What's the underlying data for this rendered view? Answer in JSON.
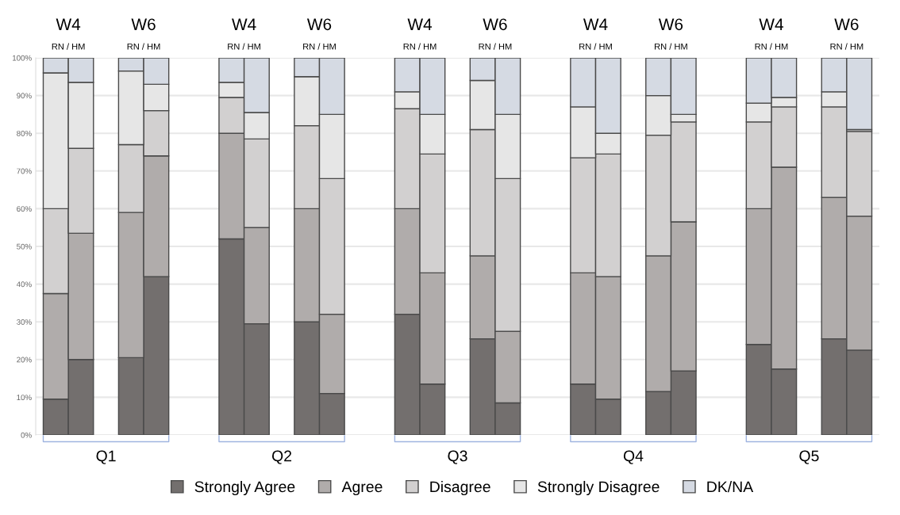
{
  "chart_data": {
    "type": "bar",
    "stacked": true,
    "categories": [
      null,
      null,
      null,
      null,
      null,
      null,
      null,
      null,
      null,
      null,
      null,
      null,
      null,
      null,
      null,
      null,
      null,
      null,
      null,
      null,
      null,
      null,
      null,
      null,
      null,
      null,
      null,
      null,
      null,
      null,
      null,
      null,
      null
    ],
    "series": [
      {
        "name": "Strongly Agree",
        "color": "#736f6e",
        "values": [
          9.5,
          20,
          null,
          20.5,
          42,
          null,
          null,
          52,
          29.5,
          null,
          30,
          11,
          null,
          null,
          32,
          13.5,
          null,
          25.5,
          8.5,
          null,
          null,
          13.5,
          9.5,
          null,
          11.5,
          17,
          null,
          null,
          24,
          17.5,
          null,
          25.5,
          22.5
        ]
      },
      {
        "name": "Agree",
        "color": "#b0acab",
        "values": [
          28,
          33.5,
          null,
          38.5,
          32,
          null,
          null,
          28,
          25.5,
          null,
          30,
          21,
          null,
          null,
          28,
          29.5,
          null,
          22,
          19,
          null,
          null,
          29.5,
          32.5,
          null,
          36,
          39.5,
          null,
          null,
          36,
          53.5,
          null,
          37.5,
          35.5
        ]
      },
      {
        "name": "Disagree",
        "color": "#d2d0d0",
        "values": [
          22.5,
          22.5,
          null,
          18,
          12,
          null,
          null,
          9.5,
          23.5,
          null,
          22,
          36,
          null,
          null,
          26.5,
          31.5,
          null,
          33.5,
          40.5,
          null,
          null,
          30.5,
          32.5,
          null,
          32,
          26.5,
          null,
          null,
          23,
          16,
          null,
          24,
          22.5
        ]
      },
      {
        "name": "Strongly Disagree",
        "color": "#e6e6e6",
        "values": [
          36,
          17.5,
          null,
          19.5,
          7,
          null,
          null,
          4,
          7,
          null,
          13,
          17,
          null,
          null,
          4.5,
          10.5,
          null,
          13,
          17,
          null,
          null,
          13.5,
          5.5,
          null,
          10.5,
          2,
          null,
          null,
          5,
          2.5,
          null,
          4,
          0.5
        ]
      },
      {
        "name": "DK/NA",
        "color": "#d5dae3",
        "values": [
          4,
          6.5,
          null,
          3.5,
          7,
          null,
          null,
          6.5,
          14.5,
          null,
          5,
          15,
          null,
          null,
          9,
          15,
          null,
          6,
          15,
          null,
          null,
          13,
          20,
          null,
          10,
          15,
          null,
          null,
          12,
          10.5,
          null,
          9,
          19
        ]
      }
    ],
    "ylim": [
      0,
      100
    ],
    "yticks": [
      {
        "value": 0,
        "label": "0%"
      },
      {
        "value": 10,
        "label": "10%"
      },
      {
        "value": 20,
        "label": "20%"
      },
      {
        "value": 30,
        "label": "30%"
      },
      {
        "value": 40,
        "label": "40%"
      },
      {
        "value": 50,
        "label": "50%"
      },
      {
        "value": 60,
        "label": "60%"
      },
      {
        "value": 70,
        "label": "70%"
      },
      {
        "value": 80,
        "label": "80%"
      },
      {
        "value": 90,
        "label": "90%"
      },
      {
        "value": 100,
        "label": "100%"
      }
    ],
    "grid": "y",
    "legend": "bottom",
    "annotations": [
      "Q1",
      "W4",
      "RN / HM",
      "W6",
      "RN / HM",
      "Q2",
      "W4",
      "RN / HM",
      "W6",
      "RN / HM",
      "Q3",
      "W4",
      "RN / HM",
      "W6",
      "RN / HM",
      "Q4",
      "W4",
      "RN / HM",
      "W6",
      "RN / HM",
      "Q5",
      "W4",
      "RN / HM",
      "W6",
      "RN / HM"
    ]
  }
}
